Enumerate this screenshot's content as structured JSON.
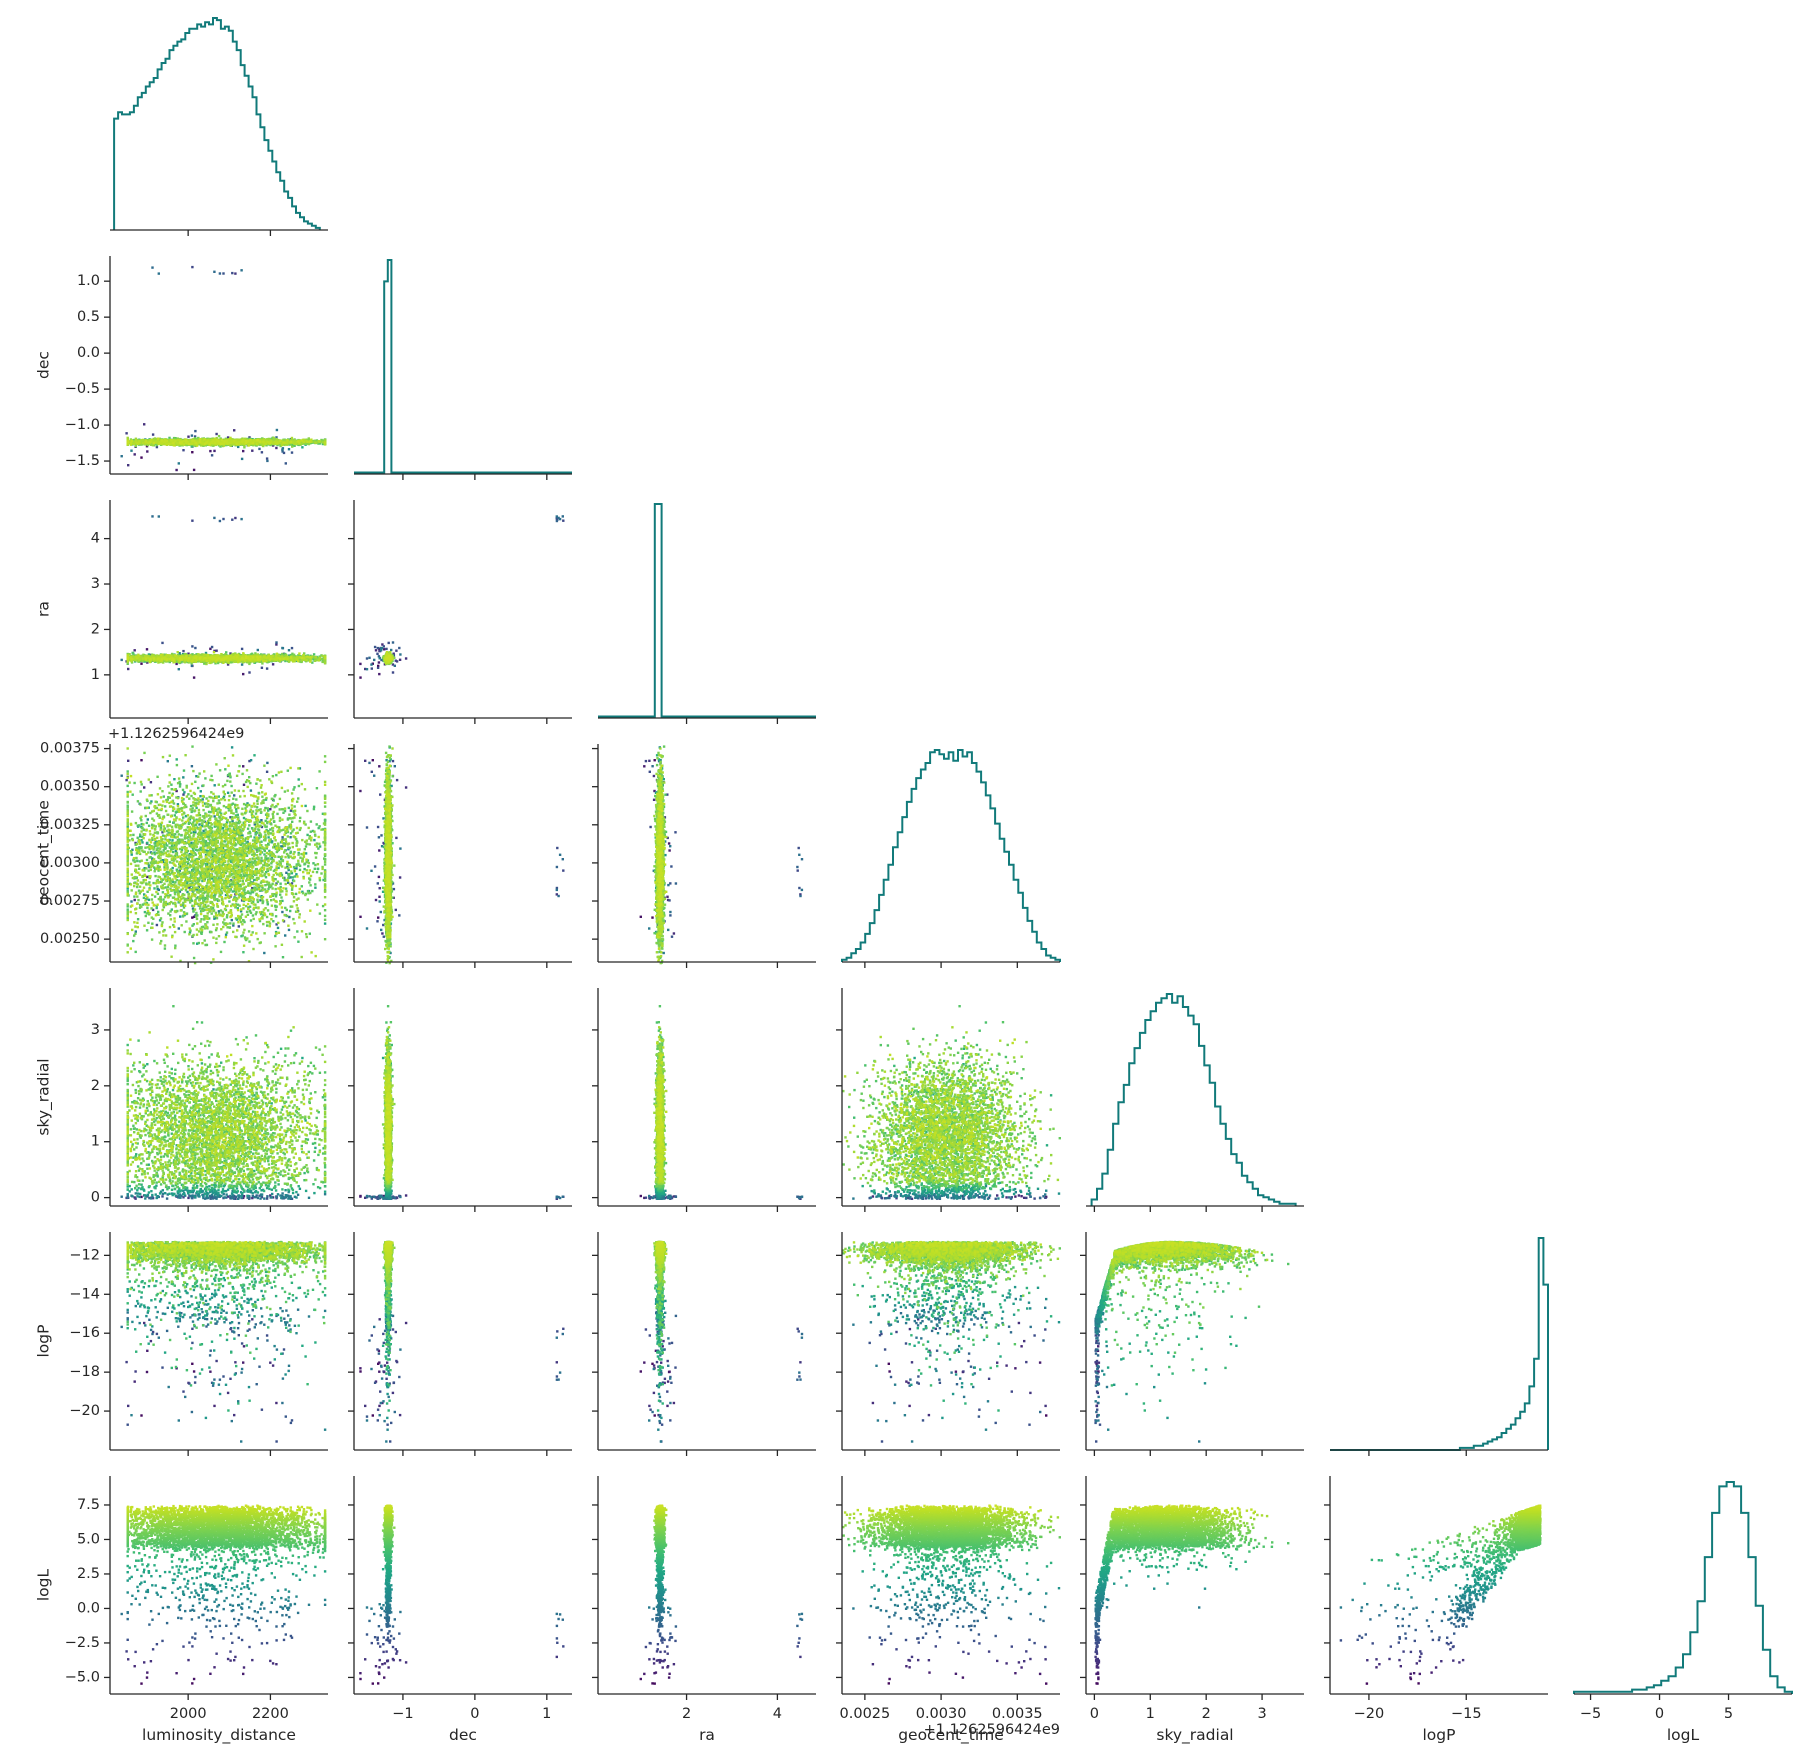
{
  "chart_data": {
    "type": "scatter",
    "title": "",
    "figure_kind": "corner pair-plot (lower triangle scatter, diagonal step histograms)",
    "colormap": "viridis",
    "color_by": "logL",
    "histogram_color": "#117a7a",
    "parameters": [
      {
        "name": "luminosity_distance",
        "label": "luminosity_distance",
        "range": [
          1810,
          2340
        ],
        "ticks": [
          2000,
          2200
        ],
        "tick_labels": [
          "2000",
          "2200"
        ]
      },
      {
        "name": "dec",
        "label": "dec",
        "range": [
          -1.68,
          1.35
        ],
        "ticks": [
          -1.5,
          -1.0,
          -0.5,
          0.0,
          0.5,
          1.0
        ],
        "tick_labels": [
          "−1.5",
          "−1.0",
          "−0.5",
          "0.0",
          "0.5",
          "1.0"
        ],
        "x_ticks": [
          -1,
          0,
          1
        ],
        "x_tick_labels": [
          "−1",
          "0",
          "1"
        ]
      },
      {
        "name": "ra",
        "label": "ra",
        "range": [
          0.05,
          4.85
        ],
        "ticks": [
          1,
          2,
          3,
          4
        ],
        "tick_labels": [
          "1",
          "2",
          "3",
          "4"
        ],
        "x_ticks": [
          2,
          4
        ],
        "x_tick_labels": [
          "2",
          "4"
        ]
      },
      {
        "name": "geocent_time",
        "label": "geocent_time",
        "range": [
          0.00235,
          0.00378
        ],
        "ticks": [
          0.0025,
          0.00275,
          0.003,
          0.00325,
          0.0035,
          0.00375
        ],
        "tick_labels": [
          "0.00250",
          "0.00275",
          "0.00300",
          "0.00325",
          "0.00350",
          "0.00375"
        ],
        "x_ticks": [
          0.0025,
          0.003,
          0.0035
        ],
        "x_tick_labels": [
          "0.0025",
          "0.0030",
          "0.0035"
        ],
        "offset_text": "+1.1262596424e9"
      },
      {
        "name": "sky_radial",
        "label": "sky_radial",
        "range": [
          -0.15,
          3.75
        ],
        "ticks": [
          0,
          1,
          2,
          3
        ],
        "tick_labels": [
          "0",
          "1",
          "2",
          "3"
        ]
      },
      {
        "name": "logP",
        "label": "logP",
        "range": [
          -22.0,
          -10.8
        ],
        "ticks": [
          -20,
          -18,
          -16,
          -14,
          -12
        ],
        "tick_labels": [
          "−20",
          "−18",
          "−16",
          "−14",
          "−12"
        ],
        "x_ticks": [
          -20,
          -15
        ],
        "x_tick_labels": [
          "−20",
          "−15"
        ]
      },
      {
        "name": "logL",
        "label": "logL",
        "range": [
          -6.2,
          9.6
        ],
        "ticks": [
          -5.0,
          -2.5,
          0.0,
          2.5,
          5.0,
          7.5
        ],
        "tick_labels": [
          "−5.0",
          "−2.5",
          "0.0",
          "2.5",
          "5.0",
          "7.5"
        ],
        "x_ticks": [
          -5,
          0,
          5
        ],
        "x_tick_labels": [
          "−5",
          "0",
          "5"
        ]
      }
    ],
    "histograms": {
      "luminosity_distance": {
        "edges": [
          1820,
          2320
        ],
        "counts": [
          52,
          55,
          54,
          54,
          55,
          58,
          62,
          64,
          67,
          69,
          71,
          75,
          78,
          80,
          84,
          86,
          88,
          89,
          92,
          94,
          94,
          96,
          95,
          97,
          96,
          99,
          98,
          94,
          95,
          93,
          88,
          84,
          77,
          72,
          67,
          62,
          54,
          48,
          42,
          37,
          32,
          27,
          23,
          18,
          15,
          11,
          8,
          6,
          4,
          3,
          2,
          1
        ]
      },
      "dec": {
        "edges": [
          -1.68,
          1.35
        ],
        "peak_range": [
          -1.26,
          -1.16
        ],
        "peak_counts": [
          90,
          100
        ]
      },
      "ra": {
        "edges": [
          0.05,
          4.85
        ],
        "peak_range": [
          1.3,
          1.45
        ],
        "peak_counts": [
          100
        ]
      },
      "geocent_time": {
        "edges": [
          0.00235,
          0.00378
        ],
        "counts": [
          1,
          2,
          4,
          6,
          9,
          13,
          18,
          24,
          31,
          38,
          45,
          53,
          60,
          67,
          74,
          80,
          85,
          89,
          92,
          97,
          98,
          96,
          94,
          97,
          93,
          98,
          95,
          97,
          92,
          88,
          83,
          77,
          71,
          64,
          57,
          51,
          45,
          38,
          32,
          25,
          19,
          14,
          9,
          6,
          3,
          2,
          1
        ]
      },
      "sky_radial": {
        "edges": [
          -0.05,
          3.6
        ],
        "counts": [
          3,
          8,
          15,
          26,
          38,
          48,
          56,
          66,
          73,
          80,
          86,
          90,
          94,
          96,
          98,
          94,
          97,
          92,
          88,
          84,
          74,
          65,
          57,
          46,
          38,
          31,
          24,
          20,
          14,
          11,
          8,
          5,
          4,
          3,
          2,
          1,
          1,
          1
        ]
      },
      "logP": {
        "edges": [
          -22.0,
          -10.8
        ],
        "counts": [
          0,
          0,
          0,
          0,
          0,
          0,
          0,
          0,
          0,
          0,
          0,
          0,
          0,
          0,
          0,
          0,
          0,
          0,
          0,
          0,
          0,
          0,
          0,
          0,
          0,
          0,
          0,
          0,
          1,
          1,
          1,
          2,
          2,
          3,
          4,
          5,
          6,
          8,
          10,
          12,
          15,
          18,
          22,
          30,
          43,
          100,
          78
        ]
      },
      "logL": {
        "edges": [
          -6.2,
          9.6
        ],
        "counts": [
          1,
          1,
          1,
          1,
          1,
          1,
          1,
          1,
          2,
          2,
          3,
          4,
          6,
          8,
          12,
          18,
          28,
          42,
          62,
          82,
          94,
          96,
          94,
          82,
          62,
          40,
          20,
          8,
          3,
          1
        ]
      }
    },
    "scatter_summary": "~50,000 posterior samples per panel, colored by logL with the viridis colormap; dec concentrated near -1.2, ra near 1.4, geocent_time offset 0.0025–0.0037, sky_radial 0–3.6, logP mostly -14 to -11, logL mostly 2 to 8.7; a few outliers with dec ≈ 1.2, ra ≈ 4.5"
  }
}
